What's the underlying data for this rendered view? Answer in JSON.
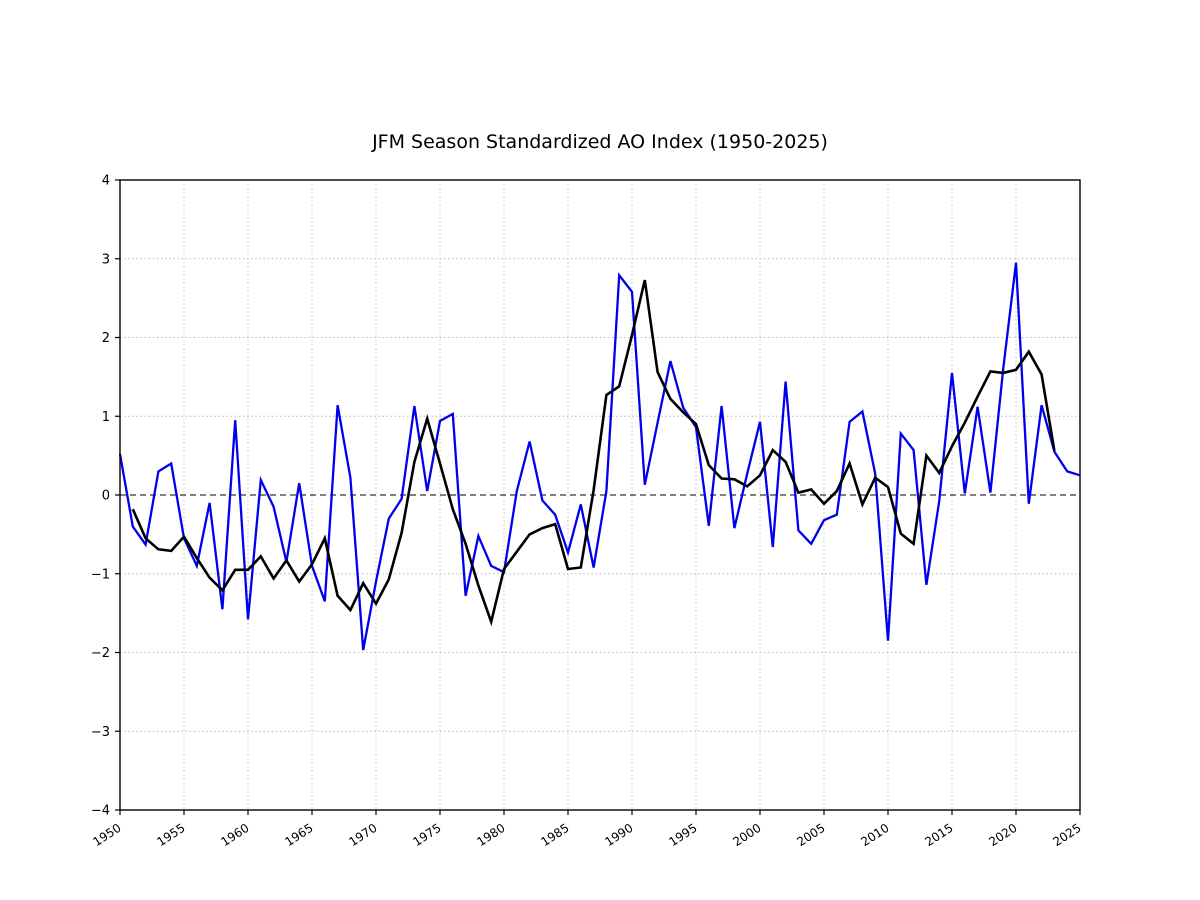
{
  "title": "JFM Season Standardized AO Index (1950-2025)",
  "colors": {
    "blue_series": "#0000ee",
    "black_series": "#000000",
    "grid": "#b8b8b8",
    "zero_line": "#000000",
    "frame": "#000000",
    "background": "#ffffff"
  },
  "chart_data": {
    "type": "line",
    "title": "JFM Season Standardized AO Index (1950-2025)",
    "xlabel": "",
    "ylabel": "",
    "xlim": [
      1950,
      2025
    ],
    "ylim": [
      -4,
      4
    ],
    "x_ticks": [
      1950,
      1955,
      1960,
      1965,
      1970,
      1975,
      1980,
      1985,
      1990,
      1995,
      2000,
      2005,
      2010,
      2015,
      2020,
      2025
    ],
    "y_ticks": [
      -4,
      -3,
      -2,
      -1,
      0,
      1,
      2,
      3,
      4
    ],
    "grid": true,
    "zero_line_dashed": true,
    "legend_position": "none",
    "series": [
      {
        "name": "blue-annual-index",
        "color": "#0000ee",
        "line_width": 2.3,
        "start_year": 1950,
        "values": [
          0.52,
          -0.4,
          -0.63,
          0.3,
          0.4,
          -0.55,
          -0.9,
          -0.1,
          -1.45,
          0.95,
          -1.58,
          0.19,
          -0.15,
          -0.85,
          0.15,
          -0.9,
          -1.35,
          1.14,
          0.22,
          -1.97,
          -1.1,
          -0.3,
          -0.05,
          1.13,
          0.05,
          0.94,
          1.03,
          -1.28,
          -0.52,
          -0.9,
          -0.98,
          0.05,
          0.68,
          -0.07,
          -0.25,
          -0.73,
          -0.12,
          -0.92,
          0.05,
          2.79,
          2.58,
          0.13,
          0.92,
          1.7,
          1.11,
          0.86,
          -0.39,
          1.13,
          -0.42,
          0.27,
          0.93,
          -0.66,
          1.44,
          -0.45,
          -0.62,
          -0.32,
          -0.25,
          0.93,
          1.06,
          0.27,
          -1.85,
          0.78,
          0.57,
          -1.14,
          -0.08,
          1.55,
          0.02,
          1.12,
          0.03,
          1.6,
          2.95,
          -0.11,
          1.14,
          0.55,
          0.3,
          0.25
        ]
      },
      {
        "name": "black-smoothed-index",
        "color": "#000000",
        "line_width": 2.6,
        "start_year": 1951,
        "values": [
          -0.18,
          -0.55,
          -0.69,
          -0.71,
          -0.53,
          -0.8,
          -1.05,
          -1.21,
          -0.95,
          -0.95,
          -0.78,
          -1.06,
          -0.83,
          -1.1,
          -0.88,
          -0.55,
          -1.28,
          -1.46,
          -1.12,
          -1.38,
          -1.07,
          -0.48,
          0.42,
          0.97,
          0.4,
          -0.18,
          -0.62,
          -1.15,
          -1.61,
          -0.94,
          -0.72,
          -0.5,
          -0.42,
          -0.37,
          -0.94,
          -0.92,
          0.06,
          1.27,
          1.38,
          2.03,
          2.73,
          1.56,
          1.22,
          1.05,
          0.9,
          0.38,
          0.21,
          0.2,
          0.11,
          0.25,
          0.57,
          0.42,
          0.03,
          0.07,
          -0.11,
          0.05,
          0.4,
          -0.12,
          0.22,
          0.1,
          -0.49,
          -0.62,
          0.5,
          0.28,
          0.62,
          0.92,
          1.25,
          1.57,
          1.55,
          1.59,
          1.82,
          1.53,
          0.56
        ]
      }
    ]
  }
}
